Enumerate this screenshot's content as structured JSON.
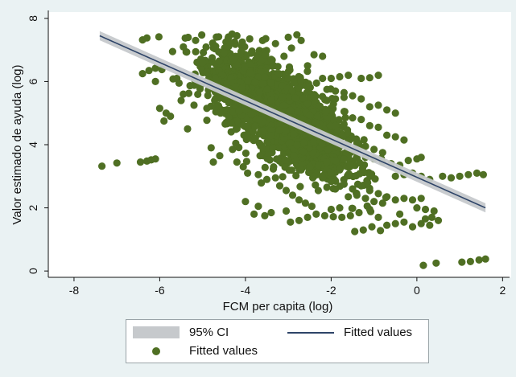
{
  "chart_data": {
    "type": "scatter",
    "xlabel": "FCM per capita (log)",
    "ylabel": "Valor estimado de ayuda (log)",
    "xlim": [
      -8.6,
      2.2
    ],
    "ylim": [
      -0.2,
      8.2
    ],
    "x_ticks": [
      -8,
      -6,
      -4,
      -2,
      0,
      2
    ],
    "y_ticks": [
      0,
      2,
      4,
      6,
      8
    ],
    "grid": false,
    "colors": {
      "points": "#4f6f23",
      "fit_line": "#2e4468",
      "ci_band": "#c6c9cc",
      "plot_bg": "#ffffff",
      "page_bg": "#eaf2f3"
    },
    "series": [
      {
        "name": "Fitted values",
        "kind": "scatter",
        "points": [
          [
            -7.35,
            3.32
          ],
          [
            -7.0,
            3.42
          ],
          [
            -6.45,
            3.45
          ],
          [
            -6.3,
            3.48
          ],
          [
            -6.2,
            3.52
          ],
          [
            -6.1,
            3.55
          ],
          [
            -6.4,
            7.32
          ],
          [
            -6.3,
            7.38
          ],
          [
            -6.4,
            6.25
          ],
          [
            -6.25,
            6.35
          ],
          [
            -6.1,
            6.42
          ],
          [
            -5.95,
            6.38
          ],
          [
            -6.0,
            5.15
          ],
          [
            -5.85,
            5.0
          ],
          [
            -5.75,
            4.9
          ],
          [
            -5.9,
            4.75
          ],
          [
            -5.7,
            6.95
          ],
          [
            -5.6,
            6.1
          ],
          [
            -6.1,
            6.0
          ],
          [
            -5.5,
            5.4
          ],
          [
            -5.55,
            5.95
          ],
          [
            -5.45,
            5.6
          ],
          [
            -5.2,
            5.25
          ],
          [
            -5.35,
            4.5
          ],
          [
            -5.1,
            5.9
          ],
          [
            -4.9,
            5.15
          ],
          [
            -4.8,
            3.9
          ],
          [
            -4.75,
            3.45
          ],
          [
            -4.6,
            3.65
          ],
          [
            -4.3,
            3.85
          ],
          [
            -4.2,
            3.45
          ],
          [
            -4.05,
            3.3
          ],
          [
            -3.95,
            3.1
          ],
          [
            -3.7,
            3.05
          ],
          [
            -3.5,
            2.9
          ],
          [
            -3.3,
            2.95
          ],
          [
            -3.2,
            2.7
          ],
          [
            -3.05,
            2.55
          ],
          [
            -2.9,
            2.4
          ],
          [
            -2.75,
            2.25
          ],
          [
            -2.6,
            2.15
          ],
          [
            -2.45,
            2.05
          ],
          [
            -3.8,
            1.8
          ],
          [
            -3.55,
            1.75
          ],
          [
            -3.05,
            1.9
          ],
          [
            -2.95,
            1.55
          ],
          [
            -2.75,
            1.6
          ],
          [
            -2.55,
            1.7
          ],
          [
            -2.35,
            1.8
          ],
          [
            -2.15,
            1.75
          ],
          [
            -1.95,
            1.72
          ],
          [
            -1.75,
            1.7
          ],
          [
            -1.55,
            1.75
          ],
          [
            -1.35,
            1.85
          ],
          [
            -1.1,
            1.95
          ],
          [
            -0.9,
            1.7
          ],
          [
            -0.7,
            1.45
          ],
          [
            -0.5,
            1.5
          ],
          [
            -0.3,
            1.55
          ],
          [
            -0.1,
            1.4
          ],
          [
            0.1,
            1.5
          ],
          [
            0.3,
            1.45
          ],
          [
            0.5,
            1.6
          ],
          [
            -1.45,
            1.25
          ],
          [
            -1.25,
            1.3
          ],
          [
            -1.05,
            1.4
          ],
          [
            -0.85,
            1.28
          ],
          [
            -2.3,
            2.55
          ],
          [
            -2.1,
            2.65
          ],
          [
            -1.9,
            2.6
          ],
          [
            -1.7,
            2.75
          ],
          [
            -1.5,
            2.6
          ],
          [
            -1.3,
            2.7
          ],
          [
            -1.1,
            2.55
          ],
          [
            -0.9,
            2.45
          ],
          [
            -0.7,
            2.35
          ],
          [
            -0.5,
            2.25
          ],
          [
            -0.3,
            2.3
          ],
          [
            -0.1,
            2.25
          ],
          [
            0.1,
            2.3
          ],
          [
            -1.6,
            2.35
          ],
          [
            -1.4,
            2.4
          ],
          [
            -1.2,
            2.3
          ],
          [
            -1.0,
            2.2
          ],
          [
            -0.8,
            2.15
          ],
          [
            0.0,
            2.0
          ],
          [
            0.2,
            1.95
          ],
          [
            0.4,
            1.9
          ],
          [
            -1.2,
            3.6
          ],
          [
            -1.0,
            3.55
          ],
          [
            -0.8,
            3.45
          ],
          [
            -0.6,
            3.4
          ],
          [
            -0.4,
            3.35
          ],
          [
            -0.2,
            3.5
          ],
          [
            0.0,
            3.55
          ],
          [
            0.1,
            3.6
          ],
          [
            -0.5,
            3.0
          ],
          [
            -0.3,
            3.05
          ],
          [
            -0.1,
            3.1
          ],
          [
            0.1,
            3.0
          ],
          [
            0.3,
            2.9
          ],
          [
            0.6,
            3.0
          ],
          [
            0.8,
            2.95
          ],
          [
            1.0,
            3.0
          ],
          [
            1.2,
            3.05
          ],
          [
            1.4,
            3.1
          ],
          [
            1.55,
            3.05
          ],
          [
            0.15,
            0.18
          ],
          [
            0.45,
            0.25
          ],
          [
            1.05,
            0.28
          ],
          [
            1.25,
            0.3
          ],
          [
            1.45,
            0.35
          ],
          [
            1.6,
            0.38
          ],
          [
            -3.9,
            7.35
          ],
          [
            -3.6,
            7.3
          ],
          [
            -3.3,
            7.2
          ],
          [
            -3.0,
            7.4
          ],
          [
            -2.8,
            7.48
          ],
          [
            -2.7,
            7.3
          ],
          [
            -4.2,
            7.45
          ],
          [
            -4.4,
            7.38
          ],
          [
            -2.4,
            6.85
          ],
          [
            -2.2,
            6.8
          ],
          [
            -2.55,
            6.5
          ],
          [
            -2.2,
            6.1
          ],
          [
            -2.0,
            6.1
          ],
          [
            -1.8,
            6.15
          ],
          [
            -1.6,
            6.2
          ],
          [
            -1.3,
            6.1
          ],
          [
            -1.1,
            6.12
          ],
          [
            -0.9,
            6.2
          ],
          [
            -2.1,
            5.75
          ],
          [
            -1.9,
            5.7
          ],
          [
            -1.7,
            5.65
          ],
          [
            -2.1,
            5.4
          ],
          [
            -1.9,
            5.45
          ],
          [
            -1.7,
            5.5
          ],
          [
            -1.5,
            5.55
          ],
          [
            -1.3,
            5.45
          ],
          [
            -1.1,
            5.2
          ],
          [
            -0.9,
            5.25
          ],
          [
            -0.7,
            5.1
          ],
          [
            -0.5,
            5.0
          ],
          [
            -1.5,
            4.85
          ],
          [
            -1.3,
            4.8
          ],
          [
            -1.1,
            4.6
          ],
          [
            -0.9,
            4.55
          ],
          [
            -0.7,
            4.3
          ],
          [
            -0.5,
            4.25
          ],
          [
            -0.3,
            4.15
          ],
          [
            -1.6,
            4.1
          ],
          [
            -1.4,
            4.05
          ],
          [
            -1.2,
            3.95
          ],
          [
            -1.0,
            3.85
          ],
          [
            -0.8,
            3.75
          ],
          [
            -4.0,
            2.2
          ],
          [
            -3.7,
            2.05
          ],
          [
            -3.4,
            1.85
          ],
          [
            -2.0,
            1.95
          ],
          [
            -1.8,
            2.0
          ],
          [
            -2.4,
            3.0
          ],
          [
            -2.2,
            2.95
          ],
          [
            -2.0,
            3.1
          ],
          [
            -1.8,
            3.2
          ],
          [
            -1.6,
            3.05
          ],
          [
            -2.7,
            3.2
          ],
          [
            -2.5,
            3.3
          ],
          [
            -2.3,
            3.35
          ],
          [
            -2.1,
            3.45
          ],
          [
            -1.9,
            3.5
          ],
          [
            -1.7,
            3.55
          ],
          [
            -0.4,
            1.8
          ],
          [
            0.2,
            1.65
          ],
          [
            0.35,
            1.7
          ],
          [
            -1.9,
            4.6
          ],
          [
            -1.7,
            4.65
          ],
          [
            -4.7,
            6.1
          ],
          [
            -4.9,
            6.3
          ],
          [
            -5.0,
            6.6
          ],
          [
            -4.5,
            6.9
          ],
          [
            -4.1,
            6.95
          ],
          [
            -3.4,
            6.7
          ],
          [
            -3.1,
            6.8
          ]
        ]
      }
    ],
    "cloud": {
      "x_center": -3.2,
      "y_center": 5.0,
      "x_spread": 0.75,
      "y_spread": 0.85,
      "slope": -0.82,
      "count": 2600
    },
    "fit": {
      "x_start": -7.4,
      "x_end": 1.6,
      "y_start": 7.45,
      "y_end": 2.0,
      "ci_half_width": 0.09
    },
    "legend": [
      {
        "label": "95% CI",
        "kind": "band"
      },
      {
        "label": "Fitted values",
        "kind": "line"
      },
      {
        "label": "Fitted values",
        "kind": "point"
      }
    ]
  }
}
